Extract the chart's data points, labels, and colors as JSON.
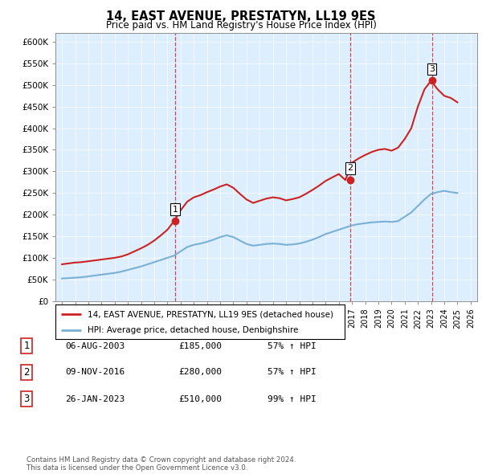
{
  "title": "14, EAST AVENUE, PRESTATYN, LL19 9ES",
  "subtitle": "Price paid vs. HM Land Registry's House Price Index (HPI)",
  "xlim": [
    1994.5,
    2026.5
  ],
  "ylim": [
    0,
    620000
  ],
  "yticks": [
    0,
    50000,
    100000,
    150000,
    200000,
    250000,
    300000,
    350000,
    400000,
    450000,
    500000,
    550000,
    600000
  ],
  "ytick_labels": [
    "£0",
    "£50K",
    "£100K",
    "£150K",
    "£200K",
    "£250K",
    "£300K",
    "£350K",
    "£400K",
    "£450K",
    "£500K",
    "£550K",
    "£600K"
  ],
  "hpi_color": "#7ab0d4",
  "price_color": "#cc2222",
  "dashed_color": "#cc3333",
  "bg_color": "#ddeeff",
  "legend_label_price": "14, EAST AVENUE, PRESTATYN, LL19 9ES (detached house)",
  "legend_label_hpi": "HPI: Average price, detached house, Denbighshire",
  "sale_dates": [
    2003.59,
    2016.86,
    2023.07
  ],
  "sale_prices": [
    185000,
    280000,
    510000
  ],
  "sale_labels": [
    "1",
    "2",
    "3"
  ],
  "table_rows": [
    [
      "1",
      "06-AUG-2003",
      "£185,000",
      "57% ↑ HPI"
    ],
    [
      "2",
      "09-NOV-2016",
      "£280,000",
      "57% ↑ HPI"
    ],
    [
      "3",
      "26-JAN-2023",
      "£510,000",
      "99% ↑ HPI"
    ]
  ],
  "footer": "Contains HM Land Registry data © Crown copyright and database right 2024.\nThis data is licensed under the Open Government Licence v3.0.",
  "hpi_x": [
    1995,
    1995.5,
    1996,
    1996.5,
    1997,
    1997.5,
    1998,
    1998.5,
    1999,
    1999.5,
    2000,
    2000.5,
    2001,
    2001.5,
    2002,
    2002.5,
    2003,
    2003.5,
    2004,
    2004.5,
    2005,
    2005.5,
    2006,
    2006.5,
    2007,
    2007.5,
    2008,
    2008.5,
    2009,
    2009.5,
    2010,
    2010.5,
    2011,
    2011.5,
    2012,
    2012.5,
    2013,
    2013.5,
    2014,
    2014.5,
    2015,
    2015.5,
    2016,
    2016.5,
    2017,
    2017.5,
    2018,
    2018.5,
    2019,
    2019.5,
    2020,
    2020.5,
    2021,
    2021.5,
    2022,
    2022.5,
    2023,
    2023.5,
    2024,
    2024.5,
    2025
  ],
  "hpi_y": [
    52000,
    53000,
    54000,
    55000,
    57000,
    59000,
    61000,
    63000,
    65000,
    68000,
    72000,
    76000,
    80000,
    85000,
    90000,
    95000,
    100000,
    105000,
    115000,
    125000,
    130000,
    133000,
    137000,
    142000,
    148000,
    152000,
    148000,
    140000,
    132000,
    128000,
    130000,
    132000,
    133000,
    132000,
    130000,
    131000,
    133000,
    137000,
    142000,
    148000,
    155000,
    160000,
    165000,
    170000,
    175000,
    178000,
    180000,
    182000,
    183000,
    184000,
    183000,
    185000,
    195000,
    205000,
    220000,
    235000,
    248000,
    252000,
    255000,
    252000,
    250000
  ],
  "price_x": [
    1995,
    1995.5,
    1996,
    1996.5,
    1997,
    1997.5,
    1998,
    1998.5,
    1999,
    1999.5,
    2000,
    2000.5,
    2001,
    2001.5,
    2002,
    2002.5,
    2003,
    2003.5,
    2004,
    2004.5,
    2005,
    2005.5,
    2006,
    2006.5,
    2007,
    2007.5,
    2008,
    2008.5,
    2009,
    2009.5,
    2010,
    2010.5,
    2011,
    2011.5,
    2012,
    2012.5,
    2013,
    2013.5,
    2014,
    2014.5,
    2015,
    2015.5,
    2016,
    2016.5,
    2017,
    2017.5,
    2018,
    2018.5,
    2019,
    2019.5,
    2020,
    2020.5,
    2021,
    2021.5,
    2022,
    2022.5,
    2023,
    2023.5,
    2024,
    2024.5,
    2025
  ],
  "price_y": [
    85000,
    87000,
    89000,
    90000,
    92000,
    94000,
    96000,
    98000,
    100000,
    103000,
    108000,
    115000,
    122000,
    130000,
    140000,
    152000,
    165000,
    185000,
    210000,
    230000,
    240000,
    245000,
    252000,
    258000,
    265000,
    270000,
    262000,
    248000,
    235000,
    227000,
    232000,
    237000,
    240000,
    238000,
    233000,
    236000,
    240000,
    248000,
    257000,
    267000,
    278000,
    286000,
    294000,
    280000,
    320000,
    330000,
    338000,
    345000,
    350000,
    352000,
    348000,
    355000,
    375000,
    400000,
    450000,
    490000,
    510000,
    490000,
    475000,
    470000,
    460000
  ]
}
